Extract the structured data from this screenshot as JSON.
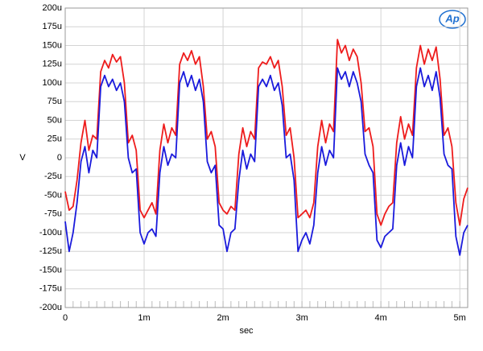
{
  "chart_data": {
    "type": "line",
    "x_label": "sec",
    "y_label": "V",
    "logo": "Ap",
    "x": [
      0,
      0.05,
      0.1,
      0.15,
      0.2,
      0.25,
      0.3,
      0.35,
      0.4,
      0.45,
      0.5,
      0.55,
      0.6,
      0.65,
      0.7,
      0.75,
      0.8,
      0.85,
      0.9,
      0.95,
      1,
      1.05,
      1.1,
      1.15,
      1.2,
      1.25,
      1.3,
      1.35,
      1.4,
      1.45,
      1.5,
      1.55,
      1.6,
      1.65,
      1.7,
      1.75,
      1.8,
      1.85,
      1.9,
      1.95,
      2,
      2.05,
      2.1,
      2.15,
      2.2,
      2.25,
      2.3,
      2.35,
      2.4,
      2.45,
      2.5,
      2.55,
      2.6,
      2.65,
      2.7,
      2.75,
      2.8,
      2.85,
      2.9,
      2.95,
      3,
      3.05,
      3.1,
      3.15,
      3.2,
      3.25,
      3.3,
      3.35,
      3.4,
      3.45,
      3.5,
      3.55,
      3.6,
      3.65,
      3.7,
      3.75,
      3.8,
      3.85,
      3.9,
      3.95,
      4,
      4.05,
      4.1,
      4.15,
      4.2,
      4.25,
      4.3,
      4.35,
      4.4,
      4.45,
      4.5,
      4.55,
      4.6,
      4.65,
      4.7,
      4.75,
      4.8,
      4.85,
      4.9,
      4.95,
      5,
      5.05,
      5.1
    ],
    "series": [
      {
        "color": "#ee1c1c",
        "values": [
          -45,
          -70,
          -65,
          -30,
          20,
          50,
          10,
          30,
          25,
          115,
          130,
          120,
          138,
          128,
          135,
          100,
          20,
          30,
          10,
          -70,
          -80,
          -70,
          -60,
          -75,
          10,
          45,
          20,
          40,
          30,
          125,
          140,
          130,
          143,
          125,
          135,
          95,
          25,
          35,
          15,
          -60,
          -70,
          -75,
          -65,
          -70,
          5,
          40,
          15,
          35,
          25,
          120,
          128,
          125,
          135,
          120,
          130,
          95,
          30,
          40,
          0,
          -80,
          -75,
          -70,
          -80,
          -60,
          15,
          50,
          20,
          45,
          35,
          158,
          140,
          150,
          130,
          145,
          135,
          100,
          35,
          40,
          15,
          -75,
          -90,
          -75,
          -65,
          -60,
          20,
          55,
          25,
          45,
          30,
          120,
          150,
          125,
          145,
          130,
          148,
          105,
          30,
          40,
          15,
          -60,
          -90,
          -55,
          -40
        ]
      },
      {
        "color": "#1a1adc",
        "values": [
          -85,
          -125,
          -100,
          -60,
          -5,
          15,
          -20,
          10,
          0,
          95,
          110,
          95,
          105,
          90,
          100,
          75,
          0,
          -20,
          -15,
          -100,
          -115,
          -100,
          -95,
          -105,
          -20,
          15,
          -10,
          5,
          0,
          100,
          115,
          95,
          110,
          90,
          105,
          75,
          -5,
          -20,
          -10,
          -90,
          -95,
          -125,
          -100,
          -95,
          -30,
          10,
          -15,
          5,
          -5,
          95,
          105,
          95,
          110,
          90,
          100,
          70,
          0,
          5,
          -30,
          -125,
          -110,
          -100,
          -115,
          -90,
          -20,
          15,
          -10,
          10,
          0,
          120,
          105,
          115,
          95,
          115,
          100,
          75,
          5,
          -10,
          -20,
          -110,
          -120,
          -105,
          -100,
          -95,
          -10,
          20,
          -10,
          15,
          0,
          95,
          120,
          95,
          110,
          90,
          115,
          80,
          5,
          -10,
          -15,
          -105,
          -130,
          -100,
          -90
        ]
      }
    ],
    "xlim": [
      0,
      5.1
    ],
    "ylim": [
      -200,
      200
    ],
    "xticks": [
      0,
      {
        "value": 1,
        "label": "1m"
      },
      {
        "value": 2,
        "label": "2m"
      },
      {
        "value": 3,
        "label": "3m"
      },
      {
        "value": 4,
        "label": "4m"
      },
      {
        "value": 5,
        "label": "5m"
      }
    ],
    "yticks": [
      {
        "value": -200,
        "label": "-200u"
      },
      {
        "value": -175,
        "label": "-175u"
      },
      {
        "value": -150,
        "label": "-150u"
      },
      {
        "value": -125,
        "label": "-125u"
      },
      {
        "value": -100,
        "label": "-100u"
      },
      {
        "value": -75,
        "label": "-75u"
      },
      {
        "value": -50,
        "label": "-50u"
      },
      {
        "value": -25,
        "label": "-25u"
      },
      0,
      {
        "value": 25,
        "label": "25u"
      },
      {
        "value": 50,
        "label": "50u"
      },
      {
        "value": 75,
        "label": "75u"
      },
      {
        "value": 100,
        "label": "100u"
      },
      {
        "value": 125,
        "label": "125u"
      },
      {
        "value": 150,
        "label": "150u"
      },
      {
        "value": 175,
        "label": "175u"
      },
      {
        "value": 200,
        "label": "200u"
      }
    ],
    "grid": true
  }
}
